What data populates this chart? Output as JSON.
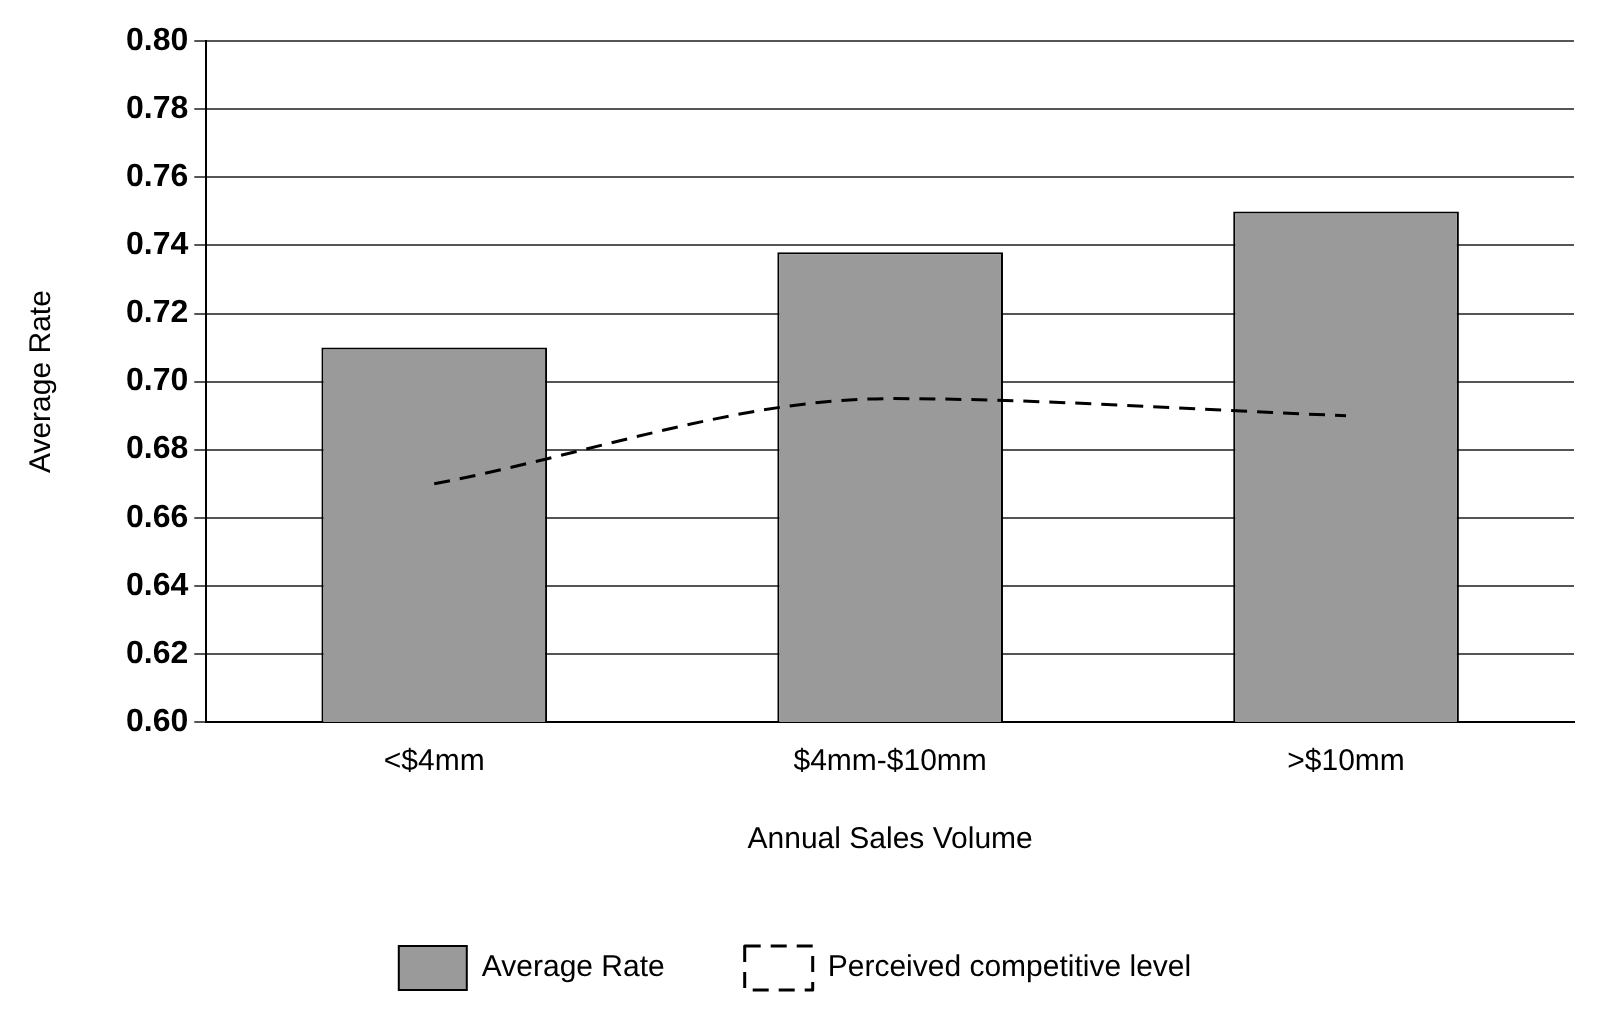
{
  "chart_data": {
    "type": "bar",
    "xlabel": "Annual Sales Volume",
    "ylabel": "Average Rate",
    "categories": [
      "<$4mm",
      "$4mm-$10mm",
      ">$10mm"
    ],
    "series": [
      {
        "name": "Average Rate",
        "color": "#9a9a9a",
        "values": [
          0.71,
          0.738,
          0.75
        ]
      },
      {
        "name": "Perceived competitive level",
        "type": "line",
        "color": "#000000",
        "line_style": "dashed",
        "marker": "none",
        "values": [
          0.67,
          0.695,
          0.69
        ]
      }
    ],
    "ylim": [
      0.6,
      0.8
    ],
    "yticks": [
      {
        "value": 0.6,
        "label": "0.60"
      },
      0.62,
      0.64,
      0.66,
      0.68,
      {
        "value": 0.7,
        "label": "0.70"
      },
      0.72,
      0.74,
      0.76,
      0.78,
      {
        "value": 0.8,
        "label": "0.80"
      }
    ],
    "grid": "y",
    "legend": "bottom"
  }
}
